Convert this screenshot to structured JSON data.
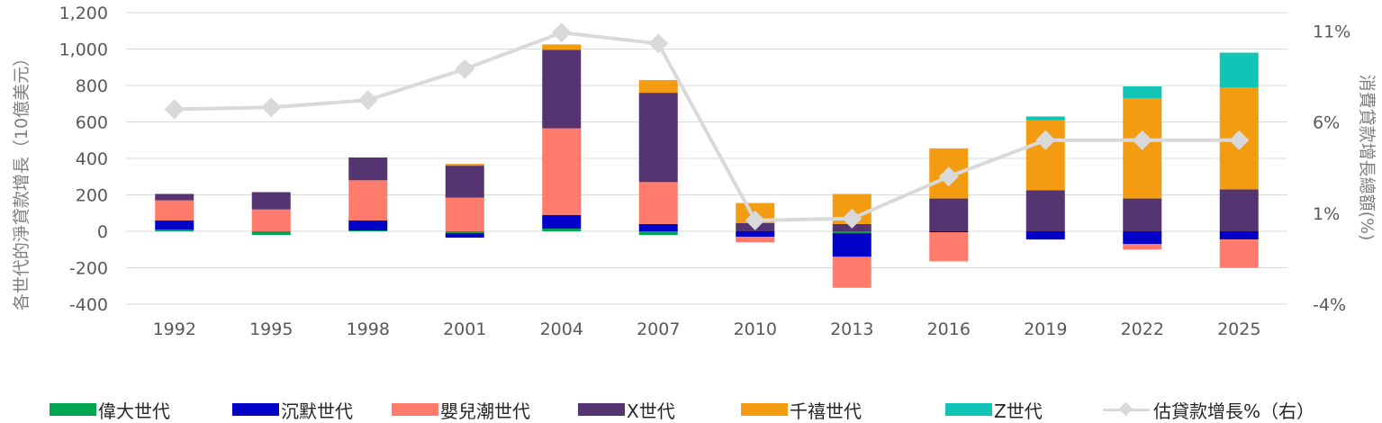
{
  "chart_data": {
    "type": "bar",
    "stacked": true,
    "categories": [
      "1992",
      "1995",
      "1998",
      "2001",
      "2004",
      "2007",
      "2010",
      "2013",
      "2016",
      "2019",
      "2022",
      "2025"
    ],
    "ylabel": "各世代的淨貸款增長（10億美元）",
    "ylabel_right": "消費貸款增長總額(%)",
    "ylim": [
      -400,
      1200
    ],
    "yticks": [
      "1,200",
      "1,000",
      "800",
      "600",
      "400",
      "200",
      "0",
      "-200",
      "-400"
    ],
    "ylim_right": [
      -4,
      12
    ],
    "yticks_right": [
      "11%",
      "6%",
      "1%",
      "-4%"
    ],
    "yticks_right_values": [
      11,
      6,
      1,
      -4
    ],
    "grid": true,
    "legend_position": "bottom",
    "series": [
      {
        "name": "偉大世代",
        "color": "#00a651",
        "values": [
          10,
          -20,
          5,
          -10,
          15,
          -20,
          0,
          -10,
          0,
          0,
          0,
          0
        ]
      },
      {
        "name": "沉默世代",
        "color": "#0000c8",
        "values": [
          50,
          0,
          55,
          -25,
          75,
          40,
          -30,
          -130,
          -5,
          -45,
          -70,
          -45
        ]
      },
      {
        "name": "嬰兒潮世代",
        "color": "#ff7b6b",
        "values": [
          110,
          120,
          220,
          185,
          475,
          230,
          -30,
          -170,
          -160,
          0,
          -30,
          -155
        ]
      },
      {
        "name": "X世代",
        "color": "#553472",
        "values": [
          35,
          95,
          125,
          175,
          430,
          490,
          45,
          40,
          180,
          225,
          180,
          230
        ]
      },
      {
        "name": "千禧世代",
        "color": "#f39c12",
        "values": [
          0,
          0,
          0,
          10,
          30,
          70,
          110,
          165,
          275,
          385,
          550,
          560
        ]
      },
      {
        "name": "Z世代",
        "color": "#10c5b5",
        "values": [
          0,
          0,
          0,
          0,
          0,
          0,
          0,
          0,
          0,
          20,
          65,
          190
        ]
      }
    ],
    "line": {
      "name": "估貸款增長%（右）",
      "color": "#d9d9d9",
      "values": [
        6.7,
        6.8,
        7.2,
        8.9,
        10.9,
        10.3,
        0.6,
        0.7,
        3.0,
        5.0,
        5.0,
        5.0
      ]
    }
  }
}
